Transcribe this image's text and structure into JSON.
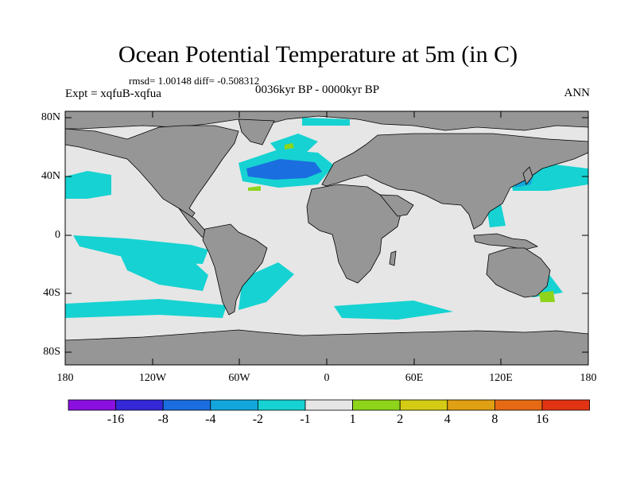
{
  "title": "Ocean Potential Temperature at 5m (in C)",
  "stats": "rmsd= 1.00148 diff= -0.508312",
  "experiment": "Expt = xqfuB-xqfua",
  "period": "0036kyr BP - 0000kyr BP",
  "season": "ANN",
  "axes": {
    "y_ticks": [
      "80N",
      "40N",
      "0",
      "40S",
      "80S"
    ],
    "x_ticks": [
      "180",
      "120W",
      "60W",
      "0",
      "60E",
      "120E",
      "180"
    ]
  },
  "colorbar": {
    "colors": [
      "#8a10e0",
      "#3428d8",
      "#1a6ee0",
      "#13a6dc",
      "#16d2d2",
      "#e6e6e6",
      "#8ed41a",
      "#d4cc14",
      "#e0a014",
      "#e66a14",
      "#e23414"
    ],
    "labels": [
      "-16",
      "-8",
      "-4",
      "-2",
      "-1",
      "1",
      "2",
      "4",
      "8",
      "16"
    ]
  },
  "colors": {
    "land": "#969696",
    "ocean": "#e6e6e6",
    "cool_light": "#16d2d2",
    "cool_mid": "#13a6dc",
    "cool_dark": "#1a6ee0",
    "warm": "#8ed41a"
  }
}
